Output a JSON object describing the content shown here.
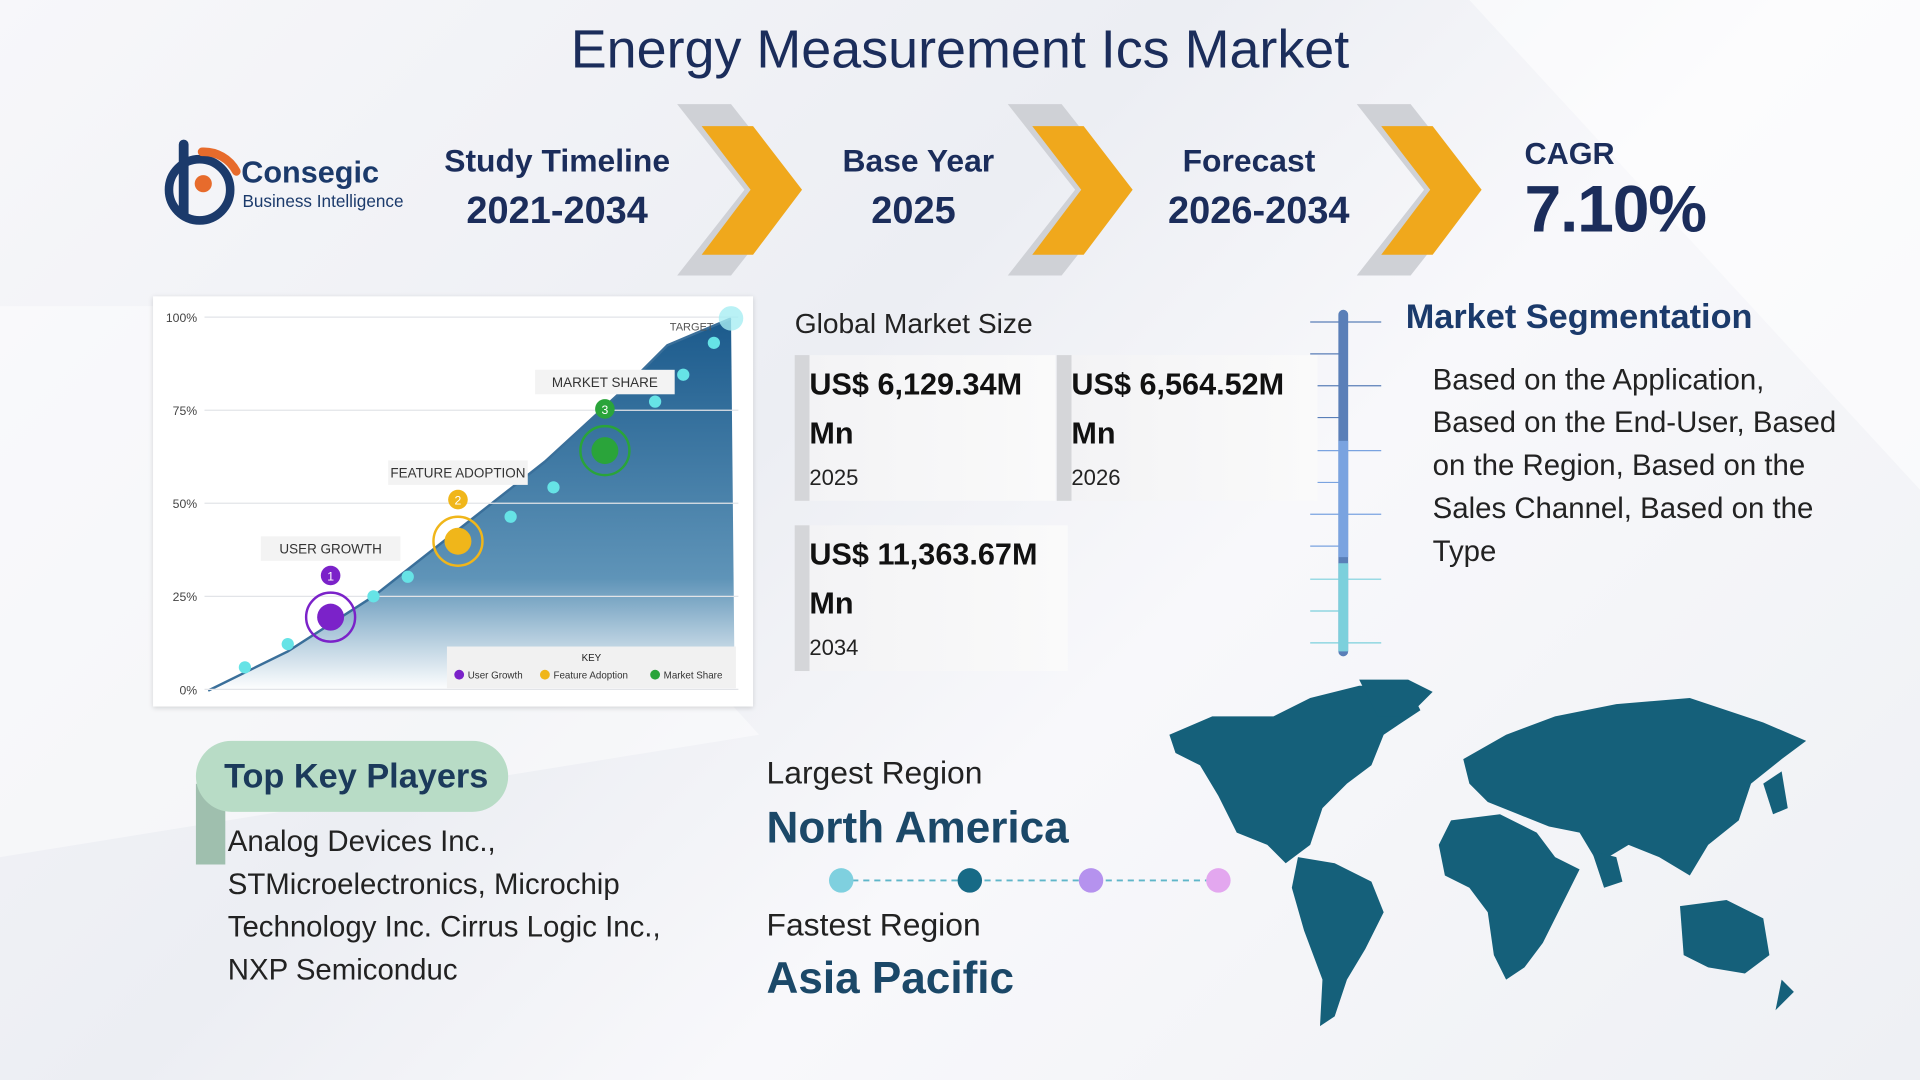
{
  "title": "Energy Measurement Ics Market",
  "logo": {
    "name": "Consegic",
    "tagline": "Business Intelligence"
  },
  "timeline": [
    {
      "label": "Study Timeline",
      "value": "2021-2034"
    },
    {
      "label": "Base Year",
      "value": "2025"
    },
    {
      "label": "Forecast",
      "value": "2026-2034"
    }
  ],
  "cagr": {
    "label": "CAGR",
    "value": "7.10%"
  },
  "market_size": {
    "heading": "Global Market Size",
    "items": [
      {
        "value": "US$ 6,129.34M Mn",
        "year": "2025"
      },
      {
        "value": "US$ 6,564.52M Mn",
        "year": "2026"
      },
      {
        "value": "US$ 11,363.67M Mn",
        "year": "2034"
      }
    ]
  },
  "segmentation": {
    "heading": "Market Segmentation",
    "text": "Based on the Application, Based on the End-User, Based on the Region, Based on the Sales Channel, Based on the Type"
  },
  "key_players": {
    "heading": "Top Key Players",
    "text": "Analog Devices Inc., STMicroelectronics, Microchip Technology Inc. Cirrus Logic Inc., NXP Semiconduc"
  },
  "regions": {
    "largest_label": "Largest Region",
    "largest": "North America",
    "fastest_label": "Fastest Region",
    "fastest": "Asia Pacific"
  },
  "illustration": {
    "axis_labels": [
      "100%",
      "75%",
      "50%",
      "25%",
      "0%"
    ],
    "target": "TARGET",
    "milestones": [
      {
        "label": "USER GROWTH",
        "number": "1"
      },
      {
        "label": "FEATURE ADOPTION",
        "number": "2"
      },
      {
        "label": "MARKET SHARE",
        "number": "3"
      }
    ],
    "key": "KEY",
    "legend": [
      "User Growth",
      "Feature Adoption",
      "Market Share"
    ]
  }
}
